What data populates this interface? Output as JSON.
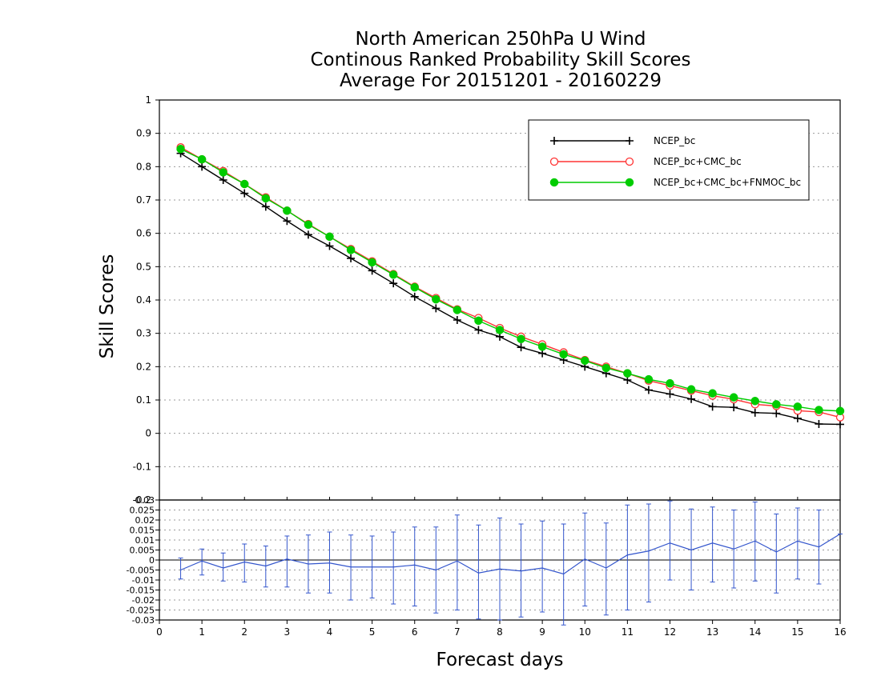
{
  "chart_data": [
    {
      "type": "line",
      "title": [
        "North American 250hPa U Wind",
        "Continous Ranked Probability Skill Scores",
        "Average For 20151201 - 20160229"
      ],
      "xlabel": "Forecast days",
      "ylabel": "Skill Scores",
      "xlim": [
        0,
        16
      ],
      "ylim": [
        -0.2,
        1
      ],
      "x_ticks": [
        "0",
        "1",
        "2",
        "3",
        "4",
        "5",
        "6",
        "7",
        "8",
        "9",
        "10",
        "11",
        "12",
        "13",
        "14",
        "15",
        "16"
      ],
      "y_ticks": [
        {
          "v": 1,
          "label": "1"
        },
        {
          "v": 0.9,
          "label": "0.9"
        },
        {
          "v": 0.8,
          "label": "0.8"
        },
        {
          "v": 0.7,
          "label": "0.7"
        },
        {
          "v": 0.6,
          "label": "0.6"
        },
        {
          "v": 0.5,
          "label": "0.5"
        },
        {
          "v": 0.4,
          "label": "0.4"
        },
        {
          "v": 0.3,
          "label": "0.3"
        },
        {
          "v": 0.2,
          "label": "0.2"
        },
        {
          "v": 0.1,
          "label": "0.1"
        },
        {
          "v": 0,
          "label": "0"
        },
        {
          "v": -0.1,
          "label": "-0.1"
        },
        {
          "v": -0.2,
          "label": "-0.2"
        }
      ],
      "grid": true,
      "legend_position": "top-right",
      "x": [
        0.5,
        1,
        1.5,
        2,
        2.5,
        3,
        3.5,
        4,
        4.5,
        5,
        5.5,
        6,
        6.5,
        7,
        7.5,
        8,
        8.5,
        9,
        9.5,
        10,
        10.5,
        11,
        11.5,
        12,
        12.5,
        13,
        13.5,
        14,
        14.5,
        15,
        15.5,
        16
      ],
      "series": [
        {
          "name": "NCEP_bc",
          "color": "#000000",
          "marker": "plus",
          "values": [
            0.84,
            0.8,
            0.76,
            0.72,
            0.68,
            0.637,
            0.596,
            0.562,
            0.525,
            0.488,
            0.45,
            0.41,
            0.375,
            0.34,
            0.31,
            0.29,
            0.258,
            0.24,
            0.22,
            0.2,
            0.18,
            0.16,
            0.13,
            0.118,
            0.103,
            0.08,
            0.078,
            0.062,
            0.06,
            0.045,
            0.028,
            0.027
          ]
        },
        {
          "name": "NCEP_bc+CMC_bc",
          "color": "#ff3333",
          "marker": "open-circle",
          "values": [
            0.858,
            0.822,
            0.787,
            0.748,
            0.708,
            0.668,
            0.628,
            0.59,
            0.553,
            0.516,
            0.478,
            0.44,
            0.406,
            0.372,
            0.346,
            0.316,
            0.29,
            0.267,
            0.243,
            0.22,
            0.2,
            0.18,
            0.158,
            0.143,
            0.128,
            0.113,
            0.102,
            0.087,
            0.082,
            0.068,
            0.064,
            0.048
          ]
        },
        {
          "name": "NCEP_bc+CMC_bc+FNMOC_bc",
          "color": "#00cc00",
          "marker": "filled-circle",
          "values": [
            0.853,
            0.822,
            0.783,
            0.748,
            0.705,
            0.668,
            0.626,
            0.59,
            0.55,
            0.513,
            0.476,
            0.438,
            0.402,
            0.37,
            0.338,
            0.31,
            0.283,
            0.26,
            0.237,
            0.218,
            0.196,
            0.18,
            0.162,
            0.15,
            0.132,
            0.12,
            0.108,
            0.097,
            0.087,
            0.08,
            0.07,
            0.067
          ]
        }
      ]
    },
    {
      "type": "line",
      "xlim": [
        0,
        16
      ],
      "ylim": [
        -0.03,
        0.03
      ],
      "y_ticks": [
        {
          "v": 0.03,
          "label": "0.03"
        },
        {
          "v": 0.025,
          "label": "0.025"
        },
        {
          "v": 0.02,
          "label": "0.02"
        },
        {
          "v": 0.015,
          "label": "0.015"
        },
        {
          "v": 0.01,
          "label": "0.01"
        },
        {
          "v": 0.005,
          "label": "0.005"
        },
        {
          "v": 0,
          "label": "0"
        },
        {
          "v": -0.005,
          "label": "-0.005"
        },
        {
          "v": -0.01,
          "label": "-0.01"
        },
        {
          "v": -0.015,
          "label": "-0.015"
        },
        {
          "v": -0.02,
          "label": "-0.02"
        },
        {
          "v": -0.025,
          "label": "-0.025"
        },
        {
          "v": -0.03,
          "label": "-0.03"
        }
      ],
      "color": "#3355cc",
      "x": [
        0.5,
        1,
        1.5,
        2,
        2.5,
        3,
        3.5,
        4,
        4.5,
        5,
        5.5,
        6,
        6.5,
        7,
        7.5,
        8,
        8.5,
        9,
        9.5,
        10,
        10.5,
        11,
        11.5,
        12,
        12.5,
        13,
        13.5,
        14,
        14.5,
        15,
        15.5,
        16
      ],
      "values": [
        -0.005,
        -0.0005,
        -0.004,
        -0.001,
        -0.003,
        0.0005,
        -0.002,
        -0.0015,
        -0.0035,
        -0.0035,
        -0.0035,
        -0.0025,
        -0.005,
        -0.0005,
        -0.0065,
        -0.0045,
        -0.0055,
        -0.004,
        -0.007,
        0.0005,
        -0.004,
        0.0025,
        0.0045,
        0.0085,
        0.005,
        0.0085,
        0.0055,
        0.0095,
        0.004,
        0.0095,
        0.0065,
        0.013
      ],
      "err_lo": [
        -0.0095,
        -0.0075,
        -0.0105,
        -0.011,
        -0.0135,
        -0.0135,
        -0.0165,
        -0.0165,
        -0.02,
        -0.019,
        -0.022,
        -0.023,
        -0.0265,
        -0.025,
        -0.0295,
        -0.03,
        -0.0285,
        -0.026,
        -0.0325,
        -0.023,
        -0.0275,
        -0.025,
        -0.021,
        -0.01,
        -0.015,
        -0.011,
        -0.014,
        -0.0105,
        -0.0165,
        -0.0095,
        -0.012,
        0.013
      ],
      "err_hi": [
        0.001,
        0.0055,
        0.0035,
        0.008,
        0.007,
        0.012,
        0.0125,
        0.014,
        0.0125,
        0.012,
        0.014,
        0.0165,
        0.0165,
        0.0225,
        0.0175,
        0.021,
        0.018,
        0.0195,
        0.018,
        0.0235,
        0.0185,
        0.0275,
        0.028,
        0.0295,
        0.0255,
        0.0265,
        0.025,
        0.029,
        0.023,
        0.026,
        0.025,
        0.013
      ]
    }
  ]
}
